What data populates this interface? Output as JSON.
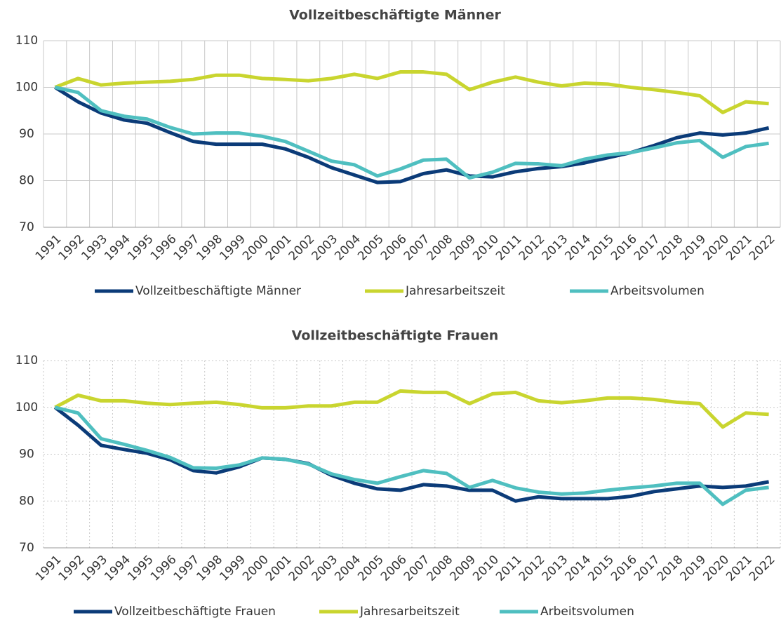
{
  "chart_data": [
    {
      "type": "line",
      "title": "Vollzeitbeschäftigte Männer",
      "categories": [
        "1991",
        "1992",
        "1993",
        "1994",
        "1995",
        "1996",
        "1997",
        "1998",
        "1999",
        "2000",
        "2001",
        "2002",
        "2003",
        "2004",
        "2005",
        "2006",
        "2007",
        "2008",
        "2009",
        "2010",
        "2011",
        "2012",
        "2013",
        "2014",
        "2015",
        "2016",
        "2017",
        "2018",
        "2019",
        "2020",
        "2021",
        "2022"
      ],
      "series": [
        {
          "name": "Vollzeitbeschäftigte Männer",
          "color": "#0b3b78",
          "values": [
            100,
            96.9,
            94.5,
            93,
            92.3,
            90.3,
            88.4,
            87.8,
            87.8,
            87.8,
            86.8,
            85,
            82.8,
            81.2,
            79.6,
            79.8,
            81.5,
            82.3,
            81,
            80.8,
            81.9,
            82.6,
            83,
            83.8,
            84.9,
            86,
            87.5,
            89.2,
            90.2,
            89.8,
            90.2,
            91.3
          ]
        },
        {
          "name": "Jahresarbeitszeit",
          "color": "#c9d52f",
          "values": [
            100,
            101.9,
            100.5,
            100.9,
            101.1,
            101.3,
            101.7,
            102.6,
            102.6,
            101.9,
            101.7,
            101.4,
            101.9,
            102.8,
            101.9,
            103.3,
            103.3,
            102.8,
            99.5,
            101.1,
            102.2,
            101.1,
            100.3,
            100.9,
            100.7,
            100,
            99.5,
            98.9,
            98.2,
            94.6,
            96.9,
            96.5
          ]
        },
        {
          "name": "Arbeitsvolumen",
          "color": "#4fbfc0",
          "values": [
            100,
            98.9,
            95,
            93.8,
            93.2,
            91.4,
            90,
            90.2,
            90.2,
            89.5,
            88.4,
            86.3,
            84.2,
            83.4,
            81,
            82.5,
            84.4,
            84.6,
            80.6,
            81.8,
            83.7,
            83.6,
            83.2,
            84.6,
            85.5,
            86,
            87,
            88.1,
            88.6,
            85,
            87.3,
            88
          ]
        }
      ],
      "ylim": [
        70,
        110
      ],
      "yticks": [
        70,
        80,
        90,
        100,
        110
      ],
      "grid": true,
      "grid_style": "solid",
      "legend": "bottom"
    },
    {
      "type": "line",
      "title": "Vollzeitbeschäftigte Frauen",
      "categories": [
        "1991",
        "1992",
        "1993",
        "1994",
        "1995",
        "1996",
        "1997",
        "1998",
        "1999",
        "2000",
        "2001",
        "2002",
        "2003",
        "2004",
        "2005",
        "2006",
        "2007",
        "2008",
        "2009",
        "2010",
        "2011",
        "2012",
        "2013",
        "2014",
        "2015",
        "2016",
        "2017",
        "2018",
        "2019",
        "2020",
        "2021",
        "2022"
      ],
      "series": [
        {
          "name": "Vollzeitbeschäftigte Frauen",
          "color": "#0b3b78",
          "values": [
            100,
            96.2,
            91.9,
            91,
            90.2,
            88.8,
            86.5,
            86,
            87.3,
            89.2,
            88.9,
            88,
            85.5,
            83.8,
            82.6,
            82.3,
            83.5,
            83.2,
            82.3,
            82.3,
            80,
            80.9,
            80.5,
            80.5,
            80.5,
            81,
            82,
            82.6,
            83.2,
            82.9,
            83.2,
            84.1
          ]
        },
        {
          "name": "Jahresarbeitszeit",
          "color": "#c9d52f",
          "values": [
            100,
            102.6,
            101.4,
            101.4,
            100.9,
            100.6,
            100.9,
            101.1,
            100.6,
            99.9,
            99.9,
            100.3,
            100.3,
            101.1,
            101.1,
            103.5,
            103.2,
            103.2,
            100.8,
            102.9,
            103.2,
            101.4,
            101,
            101.4,
            102,
            102,
            101.7,
            101.1,
            100.8,
            95.8,
            98.8,
            98.5
          ]
        },
        {
          "name": "Arbeitsvolumen",
          "color": "#4fbfc0",
          "values": [
            100,
            98.8,
            93.3,
            92.1,
            90.8,
            89.3,
            87.1,
            87,
            87.7,
            89.2,
            88.9,
            87.9,
            85.8,
            84.6,
            83.8,
            85.2,
            86.5,
            85.9,
            82.9,
            84.4,
            82.8,
            81.9,
            81.5,
            81.7,
            82.3,
            82.8,
            83.2,
            83.8,
            83.8,
            79.3,
            82.3,
            82.9
          ]
        }
      ],
      "ylim": [
        70,
        110
      ],
      "yticks": [
        70,
        80,
        90,
        100,
        110
      ],
      "grid": true,
      "grid_style": "dotted",
      "legend": "bottom"
    }
  ]
}
